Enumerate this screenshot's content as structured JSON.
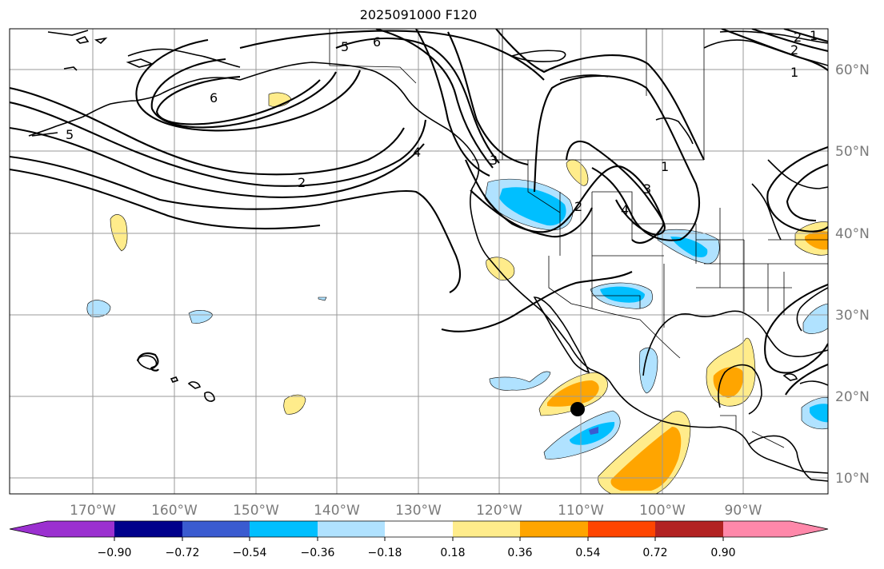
{
  "title": "2025091000 F120",
  "map": {
    "lon_labels": [
      "170°W",
      "160°W",
      "150°W",
      "140°W",
      "130°W",
      "120°W",
      "110°W",
      "100°W",
      "90°W"
    ],
    "lat_labels": [
      "60°N",
      "50°N",
      "40°N",
      "30°N",
      "20°N",
      "10°N"
    ],
    "contour_labels": [
      "5",
      "6",
      "6",
      "5",
      "2",
      "4",
      "3",
      "2",
      "1",
      "3",
      "4",
      "2",
      "1",
      "2",
      "1"
    ]
  },
  "colorbar": {
    "ticks": [
      "−0.90",
      "−0.72",
      "−0.54",
      "−0.36",
      "−0.18",
      "0.18",
      "0.36",
      "0.54",
      "0.72",
      "0.90"
    ],
    "colors": [
      "#9b30d0",
      "#00008b",
      "#3a5bd0",
      "#00bfff",
      "#b0e2ff",
      "#ffffff",
      "#ffec8b",
      "#ffa500",
      "#ff4500",
      "#b22222",
      "#ff88aa"
    ]
  },
  "colors": {
    "positive_light": "#ffec8b",
    "positive_mid": "#ffa500",
    "negative_light": "#b0e2ff",
    "negative_mid": "#00bfff",
    "negative_dark": "#3a5bd0"
  }
}
